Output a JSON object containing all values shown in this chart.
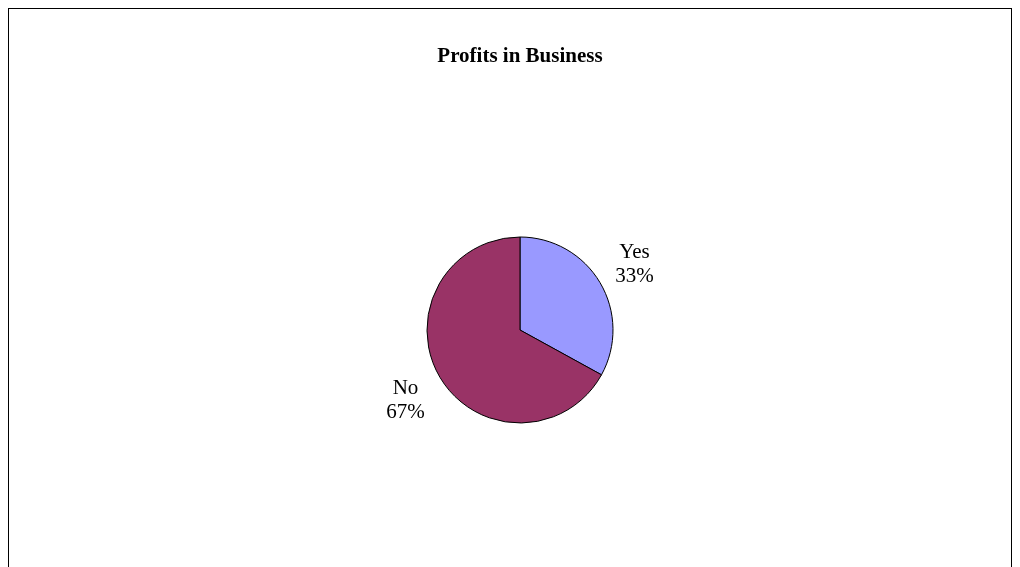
{
  "chart_data": {
    "type": "pie",
    "title": "Profits in Business",
    "categories": [
      "Yes",
      "No"
    ],
    "values": [
      33,
      67
    ],
    "colors": [
      "#9999ff",
      "#993366"
    ],
    "value_labels": [
      "33%",
      "67%"
    ],
    "legend": false
  }
}
